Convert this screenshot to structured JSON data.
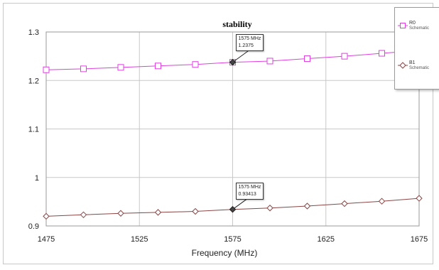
{
  "chart_data": {
    "type": "line",
    "title": "stability",
    "xlabel": "Frequency (MHz)",
    "ylabel": "",
    "xlim": [
      1475,
      1675
    ],
    "ylim": [
      0.9,
      1.3
    ],
    "xticks": [
      "1475",
      "1525",
      "1575",
      "1625",
      "1675"
    ],
    "yticks": [
      "0.9",
      "1",
      "1.1",
      "1.2",
      "1.3"
    ],
    "grid": true,
    "legend_position": "top-right",
    "series": [
      {
        "name": "R0",
        "legend_sub": "Schematic",
        "color": "#e040e0",
        "marker": "square",
        "x": [
          1475,
          1495,
          1515,
          1535,
          1555,
          1575,
          1595,
          1615,
          1635,
          1655,
          1675
        ],
        "y": [
          1.222,
          1.224,
          1.227,
          1.23,
          1.233,
          1.2375,
          1.24,
          1.245,
          1.25,
          1.256,
          1.262
        ]
      },
      {
        "name": "B1",
        "legend_sub": "Schematic",
        "color": "#8b4545",
        "marker": "diamond",
        "x": [
          1475,
          1495,
          1515,
          1535,
          1555,
          1575,
          1595,
          1615,
          1635,
          1655,
          1675
        ],
        "y": [
          0.92,
          0.923,
          0.926,
          0.928,
          0.93,
          0.93413,
          0.937,
          0.941,
          0.946,
          0.951,
          0.957
        ]
      }
    ],
    "annotations": [
      {
        "series": 0,
        "x": 1575,
        "y": 1.2375,
        "text_x": "1575 MHz",
        "text_y": "1.2375"
      },
      {
        "series": 1,
        "x": 1575,
        "y": 0.93413,
        "text_x": "1575 MHz",
        "text_y": "0.93413"
      }
    ]
  }
}
